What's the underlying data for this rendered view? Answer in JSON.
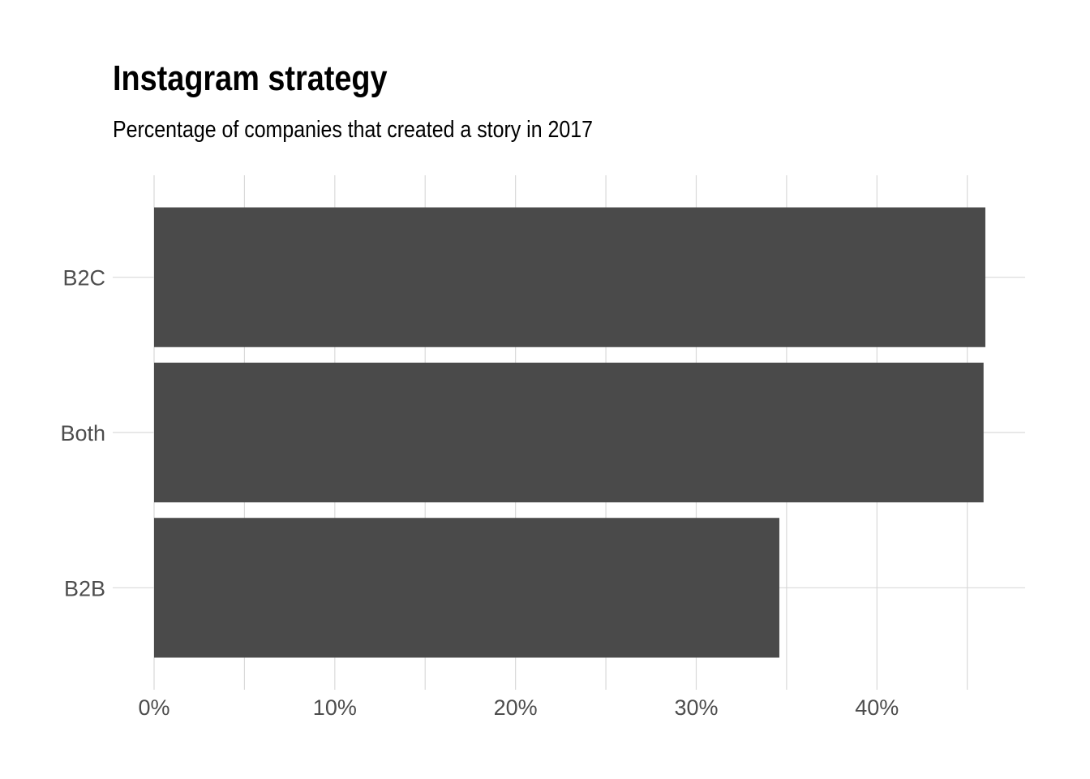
{
  "chart_data": {
    "type": "bar",
    "orientation": "horizontal",
    "title": "Instagram strategy",
    "subtitle": "Percentage of companies that created a story in 2017",
    "categories": [
      "B2C",
      "Both",
      "B2B"
    ],
    "values": [
      46.0,
      45.9,
      34.6
    ],
    "value_format": "percent",
    "x_ticks": [
      0,
      10,
      20,
      30,
      40
    ],
    "x_tick_labels": [
      "0%",
      "10%",
      "20%",
      "30%",
      "40%"
    ],
    "xlim": [
      0,
      48.2
    ],
    "xlabel": "",
    "ylabel": "",
    "grid": true,
    "legend": "none",
    "colors": {
      "bar": "#4a4a4a",
      "grid": "#d9d9d9",
      "tick_text": "#4d4d4d",
      "title_text": "#000000"
    }
  }
}
